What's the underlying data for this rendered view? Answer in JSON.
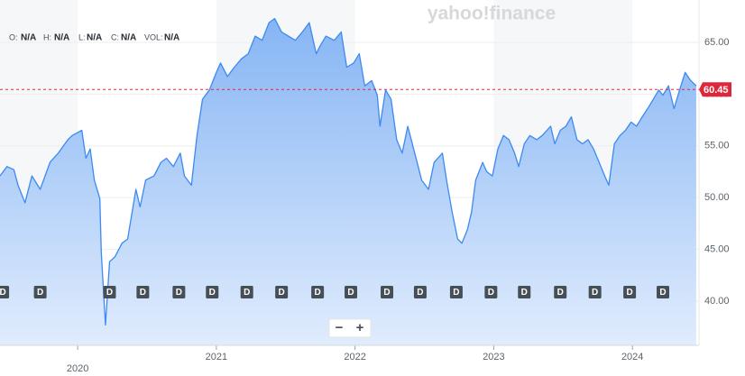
{
  "watermark": "yahoo!finance",
  "ohlc": [
    {
      "name": "O:",
      "value": "N/A"
    },
    {
      "name": "H:",
      "value": "N/A"
    },
    {
      "name": "L:",
      "value": "N/A"
    },
    {
      "name": "C:",
      "value": "N/A"
    },
    {
      "name": "VOL:",
      "value": "N/A"
    }
  ],
  "zoom_controls": [
    "−",
    "+"
  ],
  "chart_data": {
    "type": "area",
    "x": [
      2019.44,
      2019.49,
      2019.54,
      2019.57,
      2019.62,
      2019.67,
      2019.73,
      2019.8,
      2019.86,
      2019.93,
      2019.96,
      2020.03,
      2020.06,
      2020.09,
      2020.12,
      2020.16,
      2020.17,
      2020.2,
      2020.23,
      2020.27,
      2020.32,
      2020.36,
      2020.42,
      2020.45,
      2020.49,
      2020.55,
      2020.6,
      2020.64,
      2020.69,
      2020.74,
      2020.77,
      2020.82,
      2020.86,
      2020.9,
      2020.95,
      2021.0,
      2021.03,
      2021.08,
      2021.13,
      2021.18,
      2021.23,
      2021.28,
      2021.33,
      2021.38,
      2021.42,
      2021.47,
      2021.52,
      2021.57,
      2021.62,
      2021.67,
      2021.72,
      2021.75,
      2021.79,
      2021.85,
      2021.9,
      2021.94,
      2021.99,
      2022.03,
      2022.07,
      2022.12,
      2022.16,
      2022.18,
      2022.22,
      2022.26,
      2022.3,
      2022.34,
      2022.38,
      2022.43,
      2022.48,
      2022.53,
      2022.57,
      2022.63,
      2022.66,
      2022.7,
      2022.74,
      2022.77,
      2022.81,
      2022.84,
      2022.87,
      2022.92,
      2022.95,
      2022.99,
      2023.03,
      2023.07,
      2023.11,
      2023.15,
      2023.18,
      2023.22,
      2023.26,
      2023.31,
      2023.35,
      2023.41,
      2023.44,
      2023.48,
      2023.52,
      2023.56,
      2023.6,
      2023.64,
      2023.68,
      2023.72,
      2023.76,
      2023.8,
      2023.83,
      2023.87,
      2023.91,
      2023.95,
      2023.99,
      2024.03,
      2024.07,
      2024.11,
      2024.15,
      2024.19,
      2024.22,
      2024.26,
      2024.3,
      2024.34,
      2024.38,
      2024.42,
      2024.46
    ],
    "series": [
      {
        "color": "#3d8af0",
        "values": [
          52.1,
          53.0,
          52.7,
          51.2,
          49.5,
          52.1,
          50.8,
          53.4,
          54.3,
          55.6,
          56.0,
          56.5,
          53.8,
          54.7,
          51.7,
          49.9,
          44.7,
          37.7,
          43.8,
          44.3,
          45.6,
          46.0,
          50.8,
          49.1,
          51.7,
          52.1,
          53.4,
          53.8,
          53.0,
          54.3,
          52.1,
          51.2,
          56.0,
          59.5,
          60.4,
          62.1,
          63.0,
          61.7,
          62.6,
          63.4,
          63.9,
          65.6,
          65.2,
          66.9,
          67.3,
          66.0,
          65.6,
          65.2,
          66.0,
          66.9,
          63.9,
          64.7,
          65.6,
          65.2,
          66.0,
          62.6,
          63.0,
          63.9,
          60.8,
          61.3,
          59.9,
          56.9,
          60.4,
          59.5,
          55.6,
          54.3,
          56.9,
          54.3,
          51.7,
          50.8,
          53.4,
          54.3,
          51.7,
          48.6,
          46.0,
          45.6,
          46.9,
          48.6,
          51.7,
          53.4,
          52.5,
          52.1,
          54.7,
          56.0,
          55.6,
          54.3,
          53.0,
          55.2,
          56.0,
          55.6,
          56.0,
          56.9,
          55.2,
          56.5,
          56.9,
          57.8,
          55.6,
          55.2,
          55.6,
          54.7,
          53.4,
          52.1,
          51.2,
          55.2,
          56.0,
          56.5,
          57.3,
          56.9,
          57.8,
          58.6,
          59.5,
          60.4,
          59.9,
          60.8,
          58.6,
          60.4,
          62.1,
          61.3,
          60.8
        ]
      }
    ],
    "xlim": [
      2019.44,
      2024.48
    ],
    "xticks": [
      2020,
      2021,
      2022,
      2023,
      2024
    ],
    "ylim": [
      35.73,
      69.09
    ],
    "yticks": [
      {
        "value": 40,
        "label": "40.00"
      },
      {
        "value": 45,
        "label": "45.00"
      },
      {
        "value": 50,
        "label": "50.00"
      },
      {
        "value": 55,
        "label": "55.00"
      },
      {
        "value": 60,
        "label": "60.00"
      },
      {
        "value": 65,
        "label": "65.00"
      }
    ],
    "grid": true,
    "last_price": {
      "value": 60.45,
      "label": "60.45",
      "color": "#e0263a"
    },
    "events": {
      "label": "D",
      "x": [
        2019.46,
        2019.73,
        2020.23,
        2020.47,
        2020.73,
        2020.97,
        2021.22,
        2021.47,
        2021.73,
        2021.97,
        2022.23,
        2022.47,
        2022.73,
        2022.98,
        2023.22,
        2023.48,
        2023.73,
        2023.98,
        2024.22
      ]
    }
  }
}
